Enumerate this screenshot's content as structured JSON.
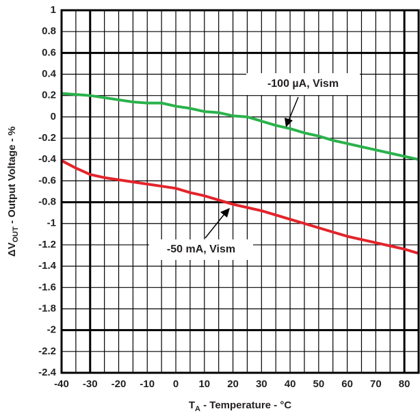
{
  "chart_data": {
    "type": "line",
    "x_label_main": "T",
    "x_label_sub": "A",
    "x_label_rest": " - Temperature - °C",
    "y_label_main": "ΔV",
    "y_label_sub": "OUT",
    "y_label_rest": " - Output Voltage - %",
    "x": [
      -40,
      -35,
      -30,
      -25,
      -20,
      -15,
      -10,
      -5,
      0,
      5,
      10,
      15,
      20,
      25,
      30,
      35,
      40,
      45,
      50,
      55,
      60,
      65,
      70,
      75,
      80,
      85
    ],
    "series": [
      {
        "name": "-100 µA, Vism",
        "color": "#2ab24b",
        "values": [
          0.22,
          0.21,
          0.2,
          0.18,
          0.16,
          0.14,
          0.13,
          0.13,
          0.1,
          0.08,
          0.05,
          0.04,
          0.01,
          0.0,
          -0.04,
          -0.08,
          -0.11,
          -0.15,
          -0.18,
          -0.22,
          -0.25,
          -0.28,
          -0.31,
          -0.34,
          -0.37,
          -0.4
        ]
      },
      {
        "name": "-50 mA, Vism",
        "color": "#e3242b",
        "values": [
          -0.41,
          -0.48,
          -0.54,
          -0.57,
          -0.59,
          -0.61,
          -0.63,
          -0.65,
          -0.67,
          -0.71,
          -0.74,
          -0.78,
          -0.82,
          -0.85,
          -0.88,
          -0.92,
          -0.96,
          -1.0,
          -1.04,
          -1.08,
          -1.12,
          -1.15,
          -1.18,
          -1.21,
          -1.24,
          -1.28
        ]
      }
    ],
    "xlim": [
      -40,
      85
    ],
    "xticks": [
      -40,
      -30,
      -20,
      -10,
      0,
      10,
      20,
      30,
      40,
      50,
      60,
      70,
      80
    ],
    "ylim": [
      -2.4,
      1
    ],
    "yticks": [
      1,
      0.8,
      0.6,
      0.4,
      0.2,
      0,
      -0.2,
      -0.4,
      -0.6,
      -0.8,
      -1,
      -1.2,
      -1.4,
      -1.6,
      -1.8,
      -2,
      -2.2,
      -2.4
    ],
    "grid": true,
    "emphasized_xticks": [
      -30,
      80
    ],
    "emphasized_yticks": [
      0.6,
      -0.8,
      -2
    ]
  }
}
